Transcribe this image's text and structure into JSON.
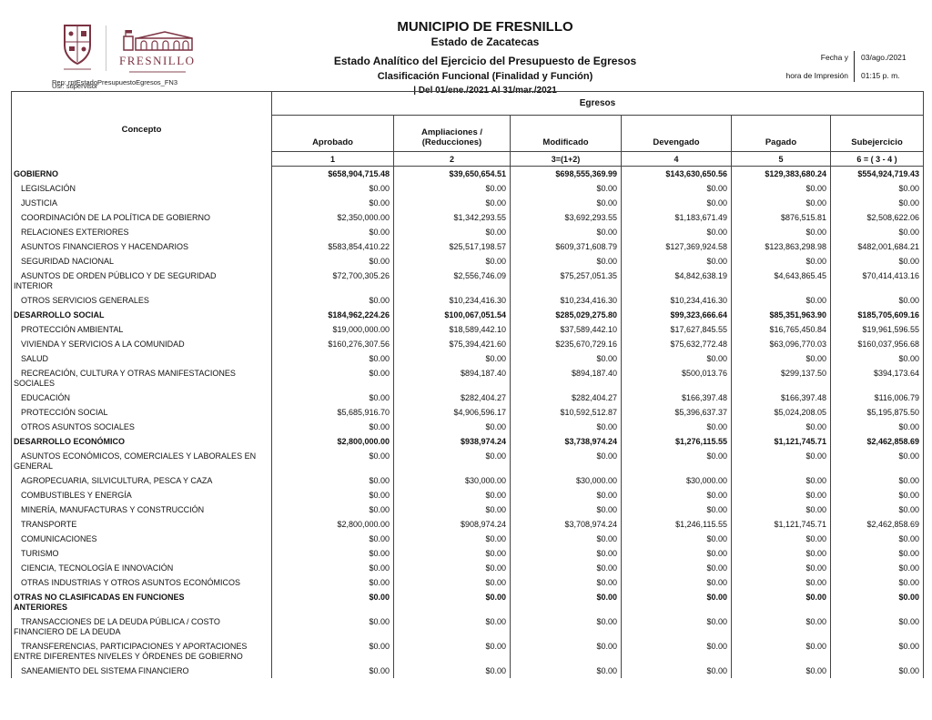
{
  "letterhead": {
    "municipality": "MUNICIPIO DE FRESNILLO",
    "state": "Estado de Zacatecas",
    "report_title": "Estado Analítico del Ejercicio del Presupuesto de Egresos",
    "classification": "Clasificación Funcional (Finalidad y Función)",
    "period": "| Del 01/ene./2021 Al 31/mar./2021",
    "report_code": "Rep: rptEstadoPresupuestoEgresos_FN3",
    "user_code": "Usr: supervisor",
    "print_date_label": "Fecha y",
    "print_time_label": "hora de Impresión",
    "print_date": "03/ago./2021",
    "print_time": "01:15 p. m.",
    "logo_text": "FRESNILLO",
    "brand_color": "#7b3342"
  },
  "table": {
    "concept_header": "Concepto",
    "group_header": "Egresos",
    "columns": [
      "Aprobado",
      "Ampliaciones /\n(Reducciones)",
      "Modificado",
      "Devengado",
      "Pagado",
      "Subejercicio"
    ],
    "column_numbers": [
      "1",
      "2",
      "3=(1+2)",
      "4",
      "5",
      "6 = ( 3 - 4 )"
    ],
    "rows": [
      {
        "concept": "GOBIERNO",
        "bold": true,
        "values": [
          "$658,904,715.48",
          "$39,650,654.51",
          "$698,555,369.99",
          "$143,630,650.56",
          "$129,383,680.24",
          "$554,924,719.43"
        ]
      },
      {
        "concept": "LEGISLACIÓN",
        "bold": false,
        "values": [
          "$0.00",
          "$0.00",
          "$0.00",
          "$0.00",
          "$0.00",
          "$0.00"
        ]
      },
      {
        "concept": "JUSTICIA",
        "bold": false,
        "values": [
          "$0.00",
          "$0.00",
          "$0.00",
          "$0.00",
          "$0.00",
          "$0.00"
        ]
      },
      {
        "concept": "COORDINACIÓN DE LA POLÍTICA DE GOBIERNO",
        "bold": false,
        "values": [
          "$2,350,000.00",
          "$1,342,293.55",
          "$3,692,293.55",
          "$1,183,671.49",
          "$876,515.81",
          "$2,508,622.06"
        ]
      },
      {
        "concept": "RELACIONES EXTERIORES",
        "bold": false,
        "values": [
          "$0.00",
          "$0.00",
          "$0.00",
          "$0.00",
          "$0.00",
          "$0.00"
        ]
      },
      {
        "concept": "ASUNTOS FINANCIEROS Y HACENDARIOS",
        "bold": false,
        "values": [
          "$583,854,410.22",
          "$25,517,198.57",
          "$609,371,608.79",
          "$127,369,924.58",
          "$123,863,298.98",
          "$482,001,684.21"
        ]
      },
      {
        "concept": "SEGURIDAD NACIONAL",
        "bold": false,
        "values": [
          "$0.00",
          "$0.00",
          "$0.00",
          "$0.00",
          "$0.00",
          "$0.00"
        ]
      },
      {
        "concept": "ASUNTOS DE ORDEN PÚBLICO Y DE SEGURIDAD\nINTERIOR",
        "bold": false,
        "values": [
          "$72,700,305.26",
          "$2,556,746.09",
          "$75,257,051.35",
          "$4,842,638.19",
          "$4,643,865.45",
          "$70,414,413.16"
        ]
      },
      {
        "concept": "OTROS SERVICIOS GENERALES",
        "bold": false,
        "values": [
          "$0.00",
          "$10,234,416.30",
          "$10,234,416.30",
          "$10,234,416.30",
          "$0.00",
          "$0.00"
        ]
      },
      {
        "concept": "DESARROLLO SOCIAL",
        "bold": true,
        "values": [
          "$184,962,224.26",
          "$100,067,051.54",
          "$285,029,275.80",
          "$99,323,666.64",
          "$85,351,963.90",
          "$185,705,609.16"
        ]
      },
      {
        "concept": "PROTECCIÓN AMBIENTAL",
        "bold": false,
        "values": [
          "$19,000,000.00",
          "$18,589,442.10",
          "$37,589,442.10",
          "$17,627,845.55",
          "$16,765,450.84",
          "$19,961,596.55"
        ]
      },
      {
        "concept": "VIVIENDA Y SERVICIOS A LA COMUNIDAD",
        "bold": false,
        "values": [
          "$160,276,307.56",
          "$75,394,421.60",
          "$235,670,729.16",
          "$75,632,772.48",
          "$63,096,770.03",
          "$160,037,956.68"
        ]
      },
      {
        "concept": "SALUD",
        "bold": false,
        "values": [
          "$0.00",
          "$0.00",
          "$0.00",
          "$0.00",
          "$0.00",
          "$0.00"
        ]
      },
      {
        "concept": "RECREACIÓN, CULTURA Y OTRAS MANIFESTACIONES\nSOCIALES",
        "bold": false,
        "values": [
          "$0.00",
          "$894,187.40",
          "$894,187.40",
          "$500,013.76",
          "$299,137.50",
          "$394,173.64"
        ]
      },
      {
        "concept": "EDUCACIÓN",
        "bold": false,
        "values": [
          "$0.00",
          "$282,404.27",
          "$282,404.27",
          "$166,397.48",
          "$166,397.48",
          "$116,006.79"
        ]
      },
      {
        "concept": "PROTECCIÓN SOCIAL",
        "bold": false,
        "values": [
          "$5,685,916.70",
          "$4,906,596.17",
          "$10,592,512.87",
          "$5,396,637.37",
          "$5,024,208.05",
          "$5,195,875.50"
        ]
      },
      {
        "concept": "OTROS ASUNTOS SOCIALES",
        "bold": false,
        "values": [
          "$0.00",
          "$0.00",
          "$0.00",
          "$0.00",
          "$0.00",
          "$0.00"
        ]
      },
      {
        "concept": "DESARROLLO ECONÓMICO",
        "bold": true,
        "values": [
          "$2,800,000.00",
          "$938,974.24",
          "$3,738,974.24",
          "$1,276,115.55",
          "$1,121,745.71",
          "$2,462,858.69"
        ]
      },
      {
        "concept": "ASUNTOS ECONÓMICOS, COMERCIALES Y LABORALES EN\nGENERAL",
        "bold": false,
        "values": [
          "$0.00",
          "$0.00",
          "$0.00",
          "$0.00",
          "$0.00",
          "$0.00"
        ]
      },
      {
        "concept": "AGROPECUARIA, SILVICULTURA, PESCA Y CAZA",
        "bold": false,
        "values": [
          "$0.00",
          "$30,000.00",
          "$30,000.00",
          "$30,000.00",
          "$0.00",
          "$0.00"
        ]
      },
      {
        "concept": "COMBUSTIBLES Y ENERGÍA",
        "bold": false,
        "values": [
          "$0.00",
          "$0.00",
          "$0.00",
          "$0.00",
          "$0.00",
          "$0.00"
        ]
      },
      {
        "concept": "MINERÍA, MANUFACTURAS Y CONSTRUCCIÓN",
        "bold": false,
        "values": [
          "$0.00",
          "$0.00",
          "$0.00",
          "$0.00",
          "$0.00",
          "$0.00"
        ]
      },
      {
        "concept": "TRANSPORTE",
        "bold": false,
        "values": [
          "$2,800,000.00",
          "$908,974.24",
          "$3,708,974.24",
          "$1,246,115.55",
          "$1,121,745.71",
          "$2,462,858.69"
        ]
      },
      {
        "concept": "COMUNICACIONES",
        "bold": false,
        "values": [
          "$0.00",
          "$0.00",
          "$0.00",
          "$0.00",
          "$0.00",
          "$0.00"
        ]
      },
      {
        "concept": "TURISMO",
        "bold": false,
        "values": [
          "$0.00",
          "$0.00",
          "$0.00",
          "$0.00",
          "$0.00",
          "$0.00"
        ]
      },
      {
        "concept": "CIENCIA, TECNOLOGÍA E INNOVACIÓN",
        "bold": false,
        "values": [
          "$0.00",
          "$0.00",
          "$0.00",
          "$0.00",
          "$0.00",
          "$0.00"
        ]
      },
      {
        "concept": "OTRAS INDUSTRIAS Y OTROS ASUNTOS ECONÓMICOS",
        "bold": false,
        "values": [
          "$0.00",
          "$0.00",
          "$0.00",
          "$0.00",
          "$0.00",
          "$0.00"
        ]
      },
      {
        "concept": "OTRAS NO CLASIFICADAS EN FUNCIONES\nANTERIORES",
        "bold": true,
        "values": [
          "$0.00",
          "$0.00",
          "$0.00",
          "$0.00",
          "$0.00",
          "$0.00"
        ]
      },
      {
        "concept": "TRANSACCIONES DE LA DEUDA PÚBLICA / COSTO\nFINANCIERO DE LA DEUDA",
        "bold": false,
        "values": [
          "$0.00",
          "$0.00",
          "$0.00",
          "$0.00",
          "$0.00",
          "$0.00"
        ]
      },
      {
        "concept": "TRANSFERENCIAS, PARTICIPACIONES Y APORTACIONES\nENTRE DIFERENTES NIVELES Y ÓRDENES DE GOBIERNO",
        "bold": false,
        "values": [
          "$0.00",
          "$0.00",
          "$0.00",
          "$0.00",
          "$0.00",
          "$0.00"
        ]
      },
      {
        "concept": "SANEAMIENTO DEL SISTEMA FINANCIERO",
        "bold": false,
        "values": [
          "$0.00",
          "$0.00",
          "$0.00",
          "$0.00",
          "$0.00",
          "$0.00"
        ]
      }
    ]
  }
}
